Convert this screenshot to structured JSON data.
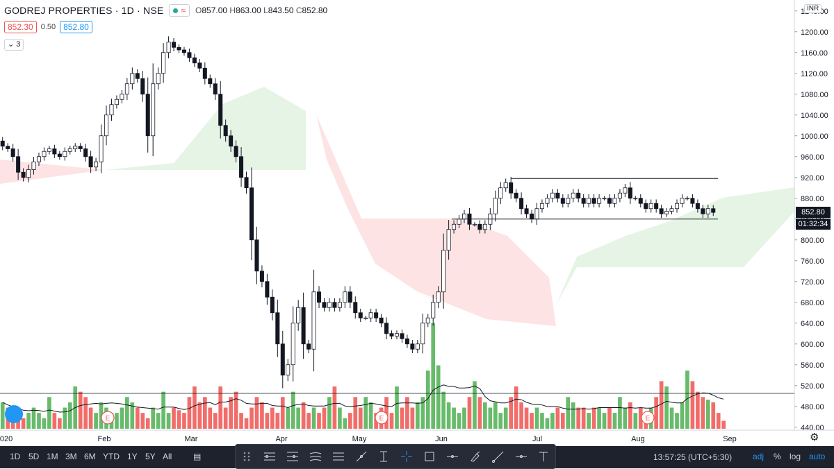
{
  "header": {
    "symbol": "GODREJ PROPERTIES",
    "interval": "1D",
    "exchange": "NSE",
    "approx_icon": "≈",
    "ohlc": {
      "o_label": "O",
      "o": "857.00",
      "h_label": "H",
      "h": "863.00",
      "l_label": "L",
      "l": "843.50",
      "c_label": "C",
      "c": "852.80"
    },
    "sell_price": "852.30",
    "spread": "0.50",
    "buy_price": "852.80",
    "indicators_count": "3",
    "currency": "INR"
  },
  "last_price_tag": "852.80",
  "countdown_tag": "01:32:34",
  "colors": {
    "up": "#4caf50",
    "down": "#ef5350",
    "candle": "#131722",
    "cloud_bull": "#e6f4e6",
    "cloud_bear": "#fde3e3"
  },
  "chart_data": {
    "type": "candlestick",
    "title": "",
    "y_ticks": [
      440,
      480,
      520,
      560,
      600,
      640,
      680,
      720,
      760,
      800,
      840,
      880,
      920,
      960,
      1000,
      1040,
      1080,
      1120,
      1160,
      1200,
      1240
    ],
    "ylim": [
      437,
      1245
    ],
    "x_tick_labels": [
      "2020",
      "Feb",
      "Mar",
      "Apr",
      "May",
      "Jun",
      "Jul",
      "Aug",
      "Sep"
    ],
    "series": [
      {
        "name": "price",
        "values": [
          980,
          975,
          960,
          930,
          920,
          935,
          950,
          960,
          970,
          975,
          965,
          960,
          970,
          975,
          980,
          975,
          960,
          940,
          950,
          1000,
          1040,
          1060,
          1070,
          1080,
          1100,
          1120,
          1110,
          1080,
          1000,
          1100,
          1120,
          1160,
          1180,
          1170,
          1165,
          1160,
          1150,
          1140,
          1130,
          1110,
          1100,
          1080,
          1020,
          1000,
          980,
          960,
          920,
          900,
          800,
          740,
          720,
          690,
          660,
          600,
          540,
          560,
          640,
          670,
          600,
          590,
          700,
          680,
          670,
          680,
          670,
          680,
          700,
          680,
          660,
          650,
          650,
          660,
          650,
          640,
          620,
          615,
          620,
          610,
          600,
          590,
          600,
          640,
          650,
          680,
          700,
          780,
          820,
          830,
          840,
          850,
          830,
          830,
          820,
          830,
          850,
          880,
          900,
          910,
          890,
          880,
          860,
          850,
          840,
          860,
          870,
          880,
          890,
          880,
          870,
          880,
          890,
          880,
          870,
          880,
          870,
          880,
          880,
          870,
          880,
          890,
          900,
          880,
          880,
          870,
          860,
          870,
          860,
          850,
          855,
          860,
          870,
          880,
          880,
          870,
          860,
          850,
          860,
          852.8
        ]
      },
      {
        "name": "volume",
        "values": [
          490,
          480,
          475,
          470,
          460,
          470,
          480,
          470,
          460,
          500,
          470,
          460,
          480,
          490,
          520,
          510,
          500,
          480,
          470,
          490,
          480,
          470,
          470,
          480,
          500,
          490,
          480,
          470,
          460,
          480,
          470,
          510,
          470,
          480,
          475,
          470,
          500,
          520,
          490,
          500,
          480,
          470,
          520,
          480,
          500,
          510,
          470,
          460,
          480,
          500,
          490,
          470,
          480,
          470,
          500,
          480,
          510,
          480,
          490,
          470,
          480,
          470,
          480,
          500,
          520,
          480,
          460,
          470,
          500,
          480,
          500,
          490,
          470,
          480,
          500,
          470,
          520,
          480,
          500,
          480,
          490,
          500,
          550,
          640,
          560,
          510,
          490,
          480,
          470,
          480,
          500,
          530,
          500,
          490,
          480,
          490,
          470,
          480,
          500,
          520,
          490,
          480,
          470,
          480,
          470,
          460,
          470,
          480,
          470,
          500,
          490,
          480,
          480,
          470,
          480,
          480,
          470,
          480,
          470,
          500,
          480,
          490,
          470,
          480,
          470,
          480,
          500,
          530,
          520,
          480,
          470,
          490,
          550,
          530,
          510,
          500,
          495,
          490,
          470,
          455
        ]
      }
    ],
    "level_lines": [
      918,
      840
    ]
  },
  "x_labels": [
    "2020",
    "Feb",
    "Mar",
    "Apr",
    "May",
    "Jun",
    "Jul",
    "Aug",
    "Sep"
  ],
  "earnings_marker": "E",
  "bottom": {
    "timeframes": [
      "1D",
      "5D",
      "1M",
      "3M",
      "6M",
      "YTD",
      "1Y",
      "5Y",
      "All"
    ],
    "clock": "13:57:25 (UTC+5:30)",
    "options": [
      "adj",
      "%",
      "log",
      "auto"
    ]
  },
  "icons": {
    "gear": "gear-icon"
  }
}
